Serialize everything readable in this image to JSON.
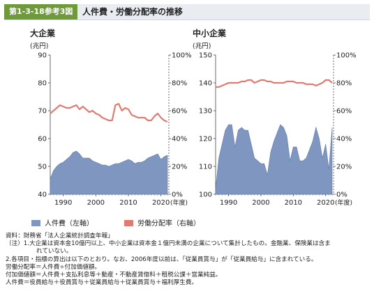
{
  "header": {
    "tag": "第1-3-18参考3図",
    "title": "人件費・労働分配率の推移"
  },
  "legend": {
    "labor_cost": "人件費（左軸）",
    "labor_share": "労働分配率（右軸）"
  },
  "colors": {
    "area": "#7f97c0",
    "area_edge": "#5f79a8",
    "line": "#e07b72",
    "title_tag": "#6e9a3a"
  },
  "chart_data": [
    {
      "type": "area+line",
      "title": "大企業",
      "ylabel_left": "(兆円)",
      "xlabel": "(年度)",
      "x": [
        1986,
        1987,
        1988,
        1989,
        1990,
        1991,
        1992,
        1993,
        1994,
        1995,
        1996,
        1997,
        1998,
        1999,
        2000,
        2001,
        2002,
        2003,
        2004,
        2005,
        2006,
        2007,
        2008,
        2009,
        2010,
        2011,
        2012,
        2013,
        2014,
        2015,
        2016,
        2017,
        2018,
        2019,
        2020,
        2021,
        2022
      ],
      "xticks": [
        1990,
        2000,
        2010,
        2020
      ],
      "ylim_left": [
        40,
        90
      ],
      "yticks_left": [
        40,
        50,
        60,
        70,
        80,
        90
      ],
      "ylim_right": [
        0,
        100
      ],
      "yticks_right": [
        "0%",
        "20%",
        "40%",
        "60%",
        "80%",
        "100%"
      ],
      "series": [
        {
          "name": "人件費（左軸）",
          "kind": "area",
          "axis": "left",
          "values": [
            45.5,
            48.5,
            50,
            51,
            51.5,
            52.5,
            53.5,
            55,
            55.5,
            54.5,
            53,
            53,
            53,
            52,
            51.5,
            51,
            50.5,
            50.5,
            50,
            50.5,
            51,
            51,
            51.5,
            52,
            52.5,
            52,
            51,
            51.5,
            51.5,
            52,
            53,
            53.5,
            54,
            54.5,
            52.5,
            53.5,
            54
          ]
        },
        {
          "name": "労働分配率（右軸）",
          "kind": "line",
          "axis": "right",
          "values": [
            58,
            60,
            62,
            64,
            63,
            62,
            62,
            63,
            64,
            61,
            63,
            61,
            59,
            60,
            58,
            57,
            55,
            54,
            53,
            53,
            64,
            65,
            60,
            62,
            61,
            57,
            56,
            55,
            55,
            55,
            53,
            53,
            56,
            58,
            55,
            53,
            52
          ]
        }
      ]
    },
    {
      "type": "area+line",
      "title": "中小企業",
      "ylabel_left": "(兆円)",
      "xlabel": "(年度)",
      "x": [
        1986,
        1987,
        1988,
        1989,
        1990,
        1991,
        1992,
        1993,
        1994,
        1995,
        1996,
        1997,
        1998,
        1999,
        2000,
        2001,
        2002,
        2003,
        2004,
        2005,
        2006,
        2007,
        2008,
        2009,
        2010,
        2011,
        2012,
        2013,
        2014,
        2015,
        2016,
        2017,
        2018,
        2019,
        2020,
        2021,
        2022
      ],
      "xticks": [
        1990,
        2000,
        2010,
        2020
      ],
      "ylim_left": [
        100,
        150
      ],
      "yticks_left": [
        100,
        110,
        120,
        130,
        140,
        150
      ],
      "ylim_right": [
        0,
        100
      ],
      "yticks_right": [
        "0%",
        "20%",
        "40%",
        "60%",
        "80%",
        "100%"
      ],
      "series": [
        {
          "name": "人件費（左軸）",
          "kind": "area",
          "axis": "left",
          "values": [
            102,
            113,
            118,
            123,
            125,
            125,
            117,
            123,
            124,
            123,
            123,
            118,
            113,
            112,
            111,
            111,
            107,
            115,
            119,
            122,
            125,
            124,
            121,
            112,
            117,
            117,
            112,
            112,
            113,
            116,
            119,
            124,
            120,
            113,
            118,
            109,
            124
          ]
        },
        {
          "name": "労働分配率（右軸）",
          "kind": "line",
          "axis": "right",
          "values": [
            77,
            77,
            78,
            79,
            80,
            80,
            80,
            80,
            81,
            81,
            82,
            82,
            80,
            81,
            82,
            82,
            81,
            81,
            80,
            80,
            80,
            80,
            81,
            81,
            81,
            80,
            80,
            80,
            79,
            79,
            79,
            78,
            79,
            80,
            82,
            82,
            80
          ]
        }
      ]
    }
  ],
  "notes": {
    "source": "資料：財務省「法人企業統計調査年報」",
    "note1a": "（注）1.大企業は資本金10億円以上、中小企業は資本金１億円未満の企業について集計したもの。金融業、保険業は含ま",
    "note1b": "れていない。",
    "note2": "2.各項目・指標の算出は以下のとおり。なお、2006年度以前は、「従業員賞与」が「従業員給与」に含まれている。",
    "formula1": "労働分配率＝人件費÷付加価値額。",
    "formula2": "付加価値額＝人件費＋支払利息等＋動産・不動産賃借料＋租税公課＋営業純益。",
    "formula3": "人件費＝役員給与＋役員賞与＋従業員給与＋従業員賞与＋福利厚生費。"
  }
}
